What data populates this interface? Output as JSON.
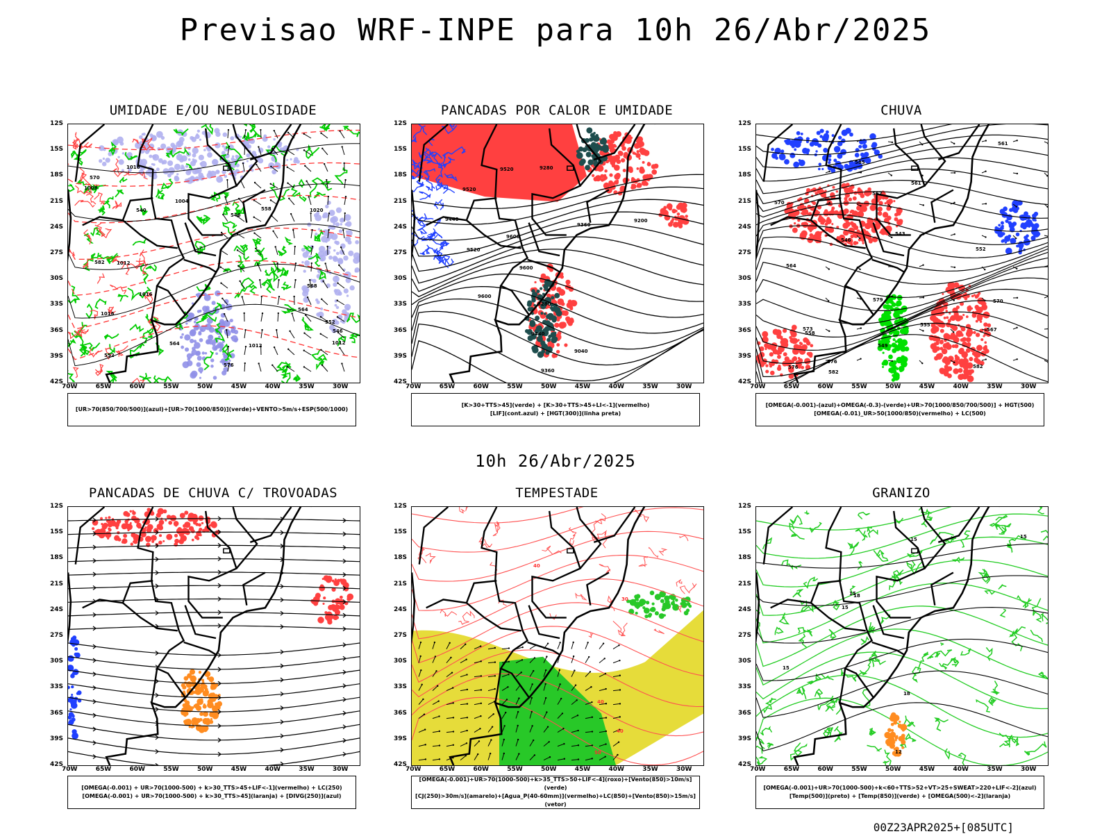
{
  "title": "Previsao WRF-INPE  para 10h 26/Abr/2025",
  "mid_title": "10h 26/Abr/2025",
  "footer": "00Z23APR2025+[085UTC]",
  "lat_labels": [
    "12S",
    "15S",
    "18S",
    "21S",
    "24S",
    "27S",
    "30S",
    "33S",
    "36S",
    "39S",
    "42S"
  ],
  "lon_labels": [
    "70W",
    "65W",
    "60W",
    "55W",
    "50W",
    "45W",
    "40W",
    "35W",
    "30W"
  ],
  "panels": [
    {
      "title": "UMIDADE E/OU NEBULOSIDADE",
      "legend": [
        "[UR>70(850/700/500)](azul)+[UR>70(1000/850)](verde)+VENTO>5m/s+ESP(500/1000)"
      ],
      "contour_labels": [
        "1012",
        "1012",
        "1012",
        "1016",
        "1016",
        "1020",
        "1008",
        "1004",
        "1016",
        "564",
        "568",
        "570",
        "576",
        "582",
        "552",
        "546",
        "540",
        "546",
        "552",
        "558",
        "564"
      ]
    },
    {
      "title": "PANCADAS POR CALOR E UMIDADE",
      "legend": [
        "[K>30+TTS>45](verde) + [K>30+TTS>45+LI<-1](vermelho)",
        "[LIF](cont.azul) + [HGT(300)](linha preta)"
      ],
      "contour_labels": [
        "9600",
        "9600",
        "9600",
        "9520",
        "9520",
        "9440",
        "9440",
        "9360",
        "9360",
        "9280",
        "9280",
        "9200",
        "9040",
        "9520"
      ]
    },
    {
      "title": "CHUVA",
      "legend": [
        "[OMEGA(-0.001)-(azul)+OMEGA(-0.3)-(verde)+UR>70(1000/850/700/500)] + HGT(500)",
        "[OMEGA(-0.01)_UR>50(1000/850)(vermelho) + LC(500)"
      ],
      "contour_labels": [
        "585",
        "582",
        "582",
        "579",
        "576",
        "576",
        "573",
        "570",
        "570",
        "567",
        "567",
        "564",
        "561",
        "561",
        "558",
        "555",
        "552",
        "549",
        "546",
        "543"
      ]
    },
    {
      "title": "PANCADAS DE CHUVA C/ TROVOADAS",
      "legend": [
        "[OMEGA(-0.001) + UR>70(1000-500) + k>30_TTS>45+LIF<-1](vermelho) + LC(250)",
        "[OMEGA(-0.001) + UR>70(1000-500) + k>30_TTS>45](laranja) + [DIVG(250)](azul)"
      ],
      "contour_labels": []
    },
    {
      "title": "TEMPESTADE",
      "legend": [
        "[OMEGA(-0.001)+UR>70(1000-500)+k>35_TTS>50+LIF<-4](roxo)+[Vento(850)>10m/s](verde)",
        "[CJ(250)>30m/s](amarelo)+[Agua_P(40-60mm)](vermelho)+LC(850)+[Vento(850)>15m/s](vetor)"
      ],
      "contour_labels": [
        "50",
        "40",
        "40",
        "30",
        "40"
      ]
    },
    {
      "title": "GRANIZO",
      "legend": [
        "[OMEGA(-0.001)+UR>70(1000-500)+k<60+TTS>52+VT>25+SWEAT>220+LIF<-2](azul)",
        "[Temp(500)](preto) + [Temp(850)](verde) + [OMEGA(500)<-2](laranja)"
      ],
      "contour_labels": [
        "15",
        "15",
        "15",
        "12",
        "15",
        "18",
        "15",
        "18"
      ]
    }
  ]
}
